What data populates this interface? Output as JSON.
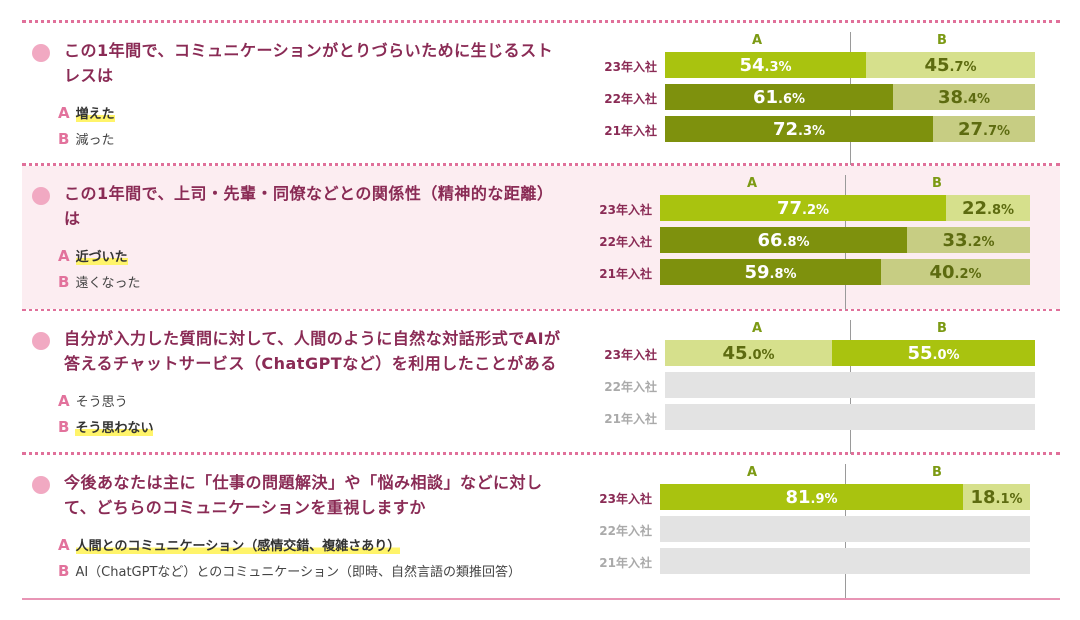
{
  "colors": {
    "accent_pink": "#e0709a",
    "question_text": "#8a2b55",
    "bar_dark": "#7e910d",
    "bar_bright": "#a9c30f",
    "bar_light": "#d6e08c",
    "bar_muted": "#c7cd83",
    "empty": "#e3e3e3"
  },
  "col_a": "A",
  "col_b": "B",
  "chart_data": {
    "type": "bar",
    "stacked": true,
    "orientation": "horizontal",
    "questions": [
      {
        "question": "この1年間で、コミュニケーションがとりづらいために生じるストレスは",
        "options": [
          {
            "letter": "A",
            "text": "増えた",
            "highlight": true
          },
          {
            "letter": "B",
            "text": "減った",
            "highlight": false
          }
        ],
        "rows": [
          {
            "label": "23年入社",
            "a": 54.3,
            "b": 45.7
          },
          {
            "label": "22年入社",
            "a": 61.6,
            "b": 38.4
          },
          {
            "label": "21年入社",
            "a": 72.3,
            "b": 27.7
          }
        ]
      },
      {
        "question": "この1年間で、上司・先輩・同僚などとの関係性（精神的な距離）は",
        "options": [
          {
            "letter": "A",
            "text": "近づいた",
            "highlight": true
          },
          {
            "letter": "B",
            "text": "遠くなった",
            "highlight": false
          }
        ],
        "rows": [
          {
            "label": "23年入社",
            "a": 77.2,
            "b": 22.8
          },
          {
            "label": "22年入社",
            "a": 66.8,
            "b": 33.2
          },
          {
            "label": "21年入社",
            "a": 59.8,
            "b": 40.2
          }
        ]
      },
      {
        "question": "自分が入力した質問に対して、人間のように自然な対話形式でAIが答えるチャットサービス（ChatGPTなど）を利用したことがある",
        "options": [
          {
            "letter": "A",
            "text": "そう思う",
            "highlight": false
          },
          {
            "letter": "B",
            "text": "そう思わない",
            "highlight": true
          }
        ],
        "rows": [
          {
            "label": "23年入社",
            "a": 45.0,
            "b": 55.0
          },
          {
            "label": "22年入社",
            "a": null,
            "b": null
          },
          {
            "label": "21年入社",
            "a": null,
            "b": null
          }
        ]
      },
      {
        "question": "今後あなたは主に「仕事の問題解決」や「悩み相談」などに対して、どちらのコミュニケーションを重視しますか",
        "options": [
          {
            "letter": "A",
            "text": "人間とのコミュニケーション（感情交錯、複雑さあり）",
            "highlight": true
          },
          {
            "letter": "B",
            "text": "AI（ChatGPTなど）とのコミュニケーション（即時、自然言語の類推回答）",
            "highlight": false
          }
        ],
        "rows": [
          {
            "label": "23年入社",
            "a": 81.9,
            "b": 18.1
          },
          {
            "label": "22年入社",
            "a": null,
            "b": null
          },
          {
            "label": "21年入社",
            "a": null,
            "b": null
          }
        ]
      }
    ]
  }
}
